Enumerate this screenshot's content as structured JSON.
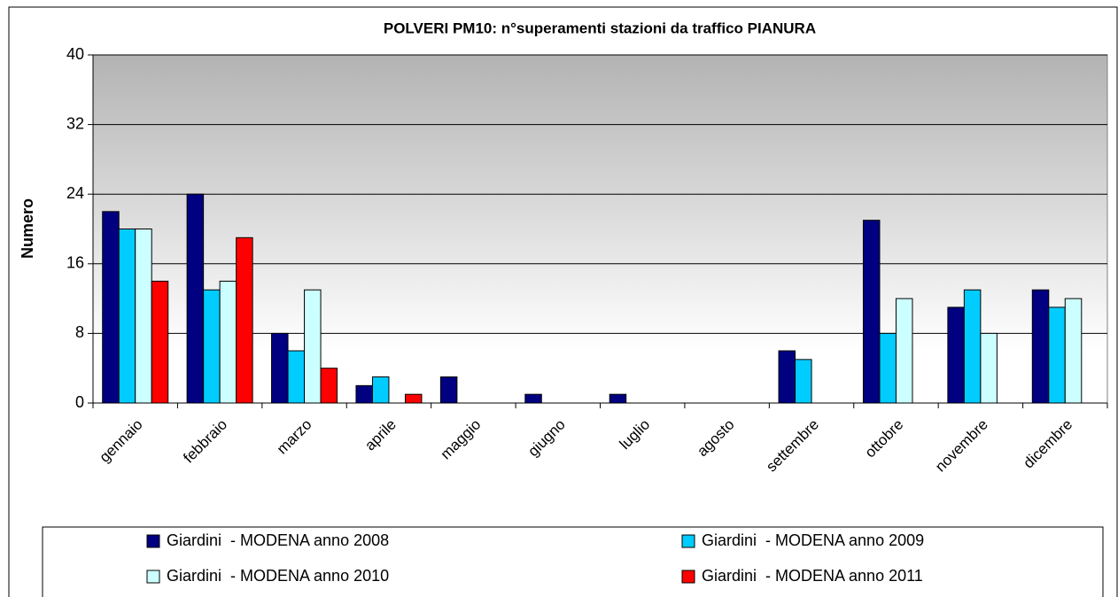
{
  "chart_data": {
    "type": "bar",
    "title": "POLVERI PM10: n°superamenti stazioni da traffico PIANURA",
    "y_label": "Numero",
    "categories": [
      "gennaio",
      "febbraio",
      "marzo",
      "aprile",
      "maggio",
      "giugno",
      "luglio",
      "agosto",
      "settembre",
      "ottobre",
      "novembre",
      "dicembre"
    ],
    "series": [
      {
        "name": "Giardini  - MODENA anno 2008",
        "color": "#000080",
        "values": [
          22,
          24,
          8,
          2,
          3,
          1,
          1,
          0,
          6,
          21,
          11,
          13
        ]
      },
      {
        "name": "Giardini  - MODENA anno 2009",
        "color": "#00ccff",
        "values": [
          20,
          13,
          6,
          3,
          0,
          0,
          0,
          0,
          5,
          8,
          13,
          11
        ]
      },
      {
        "name": "Giardini  - MODENA anno 2010",
        "color": "#ccffff",
        "values": [
          20,
          14,
          13,
          0,
          0,
          0,
          0,
          0,
          0,
          12,
          8,
          12
        ]
      },
      {
        "name": "Giardini  - MODENA anno 2011",
        "color": "#ff0000",
        "values": [
          14,
          19,
          4,
          1,
          null,
          null,
          null,
          null,
          null,
          null,
          null,
          null
        ]
      }
    ],
    "ylim": [
      0,
      40
    ],
    "yticks": [
      0,
      8,
      16,
      24,
      32,
      40
    ],
    "grid": true,
    "legend": "bottom"
  }
}
